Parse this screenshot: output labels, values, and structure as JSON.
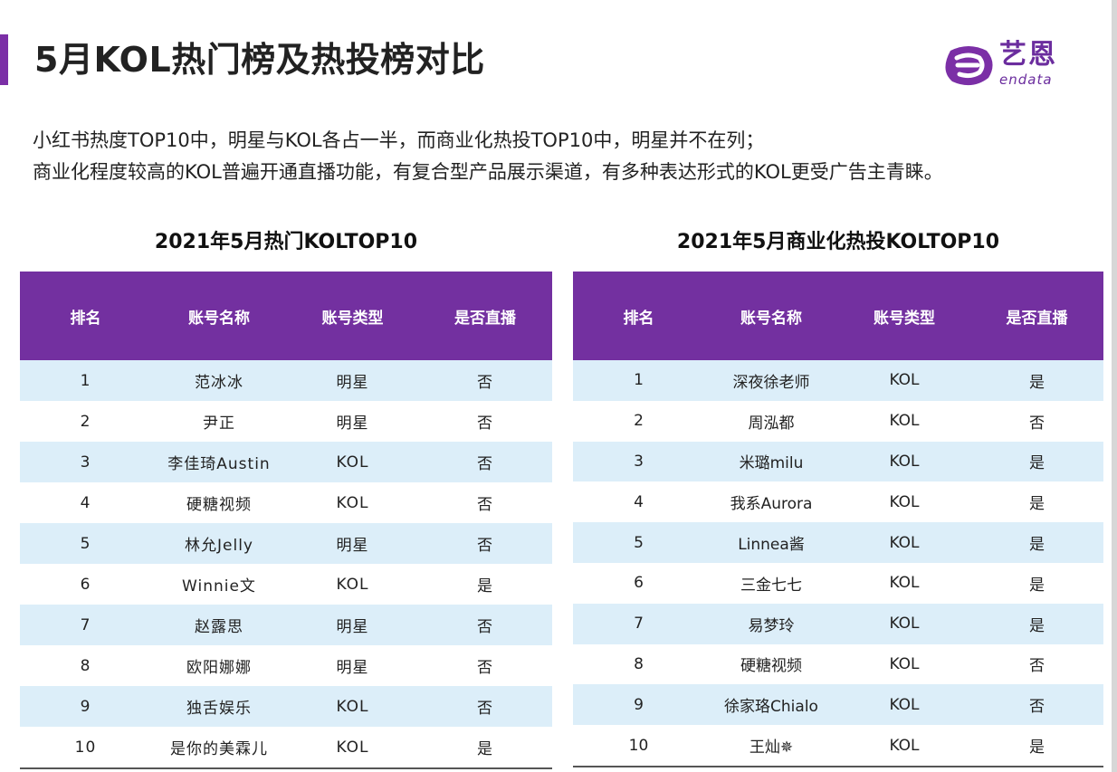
{
  "header": {
    "title": "5月KOL热门榜及热投榜对比",
    "logo_cn": "艺恩",
    "logo_en": "endata"
  },
  "description": [
    "小红书热度TOP10中，明星与KOL各占一半，而商业化热投TOP10中，明星并不在列；",
    "商业化程度较高的KOL普遍开通直播功能，有复合型产品展示渠道，有多种表达形式的KOL更受广告主青睐。"
  ],
  "tables": [
    {
      "title": "2021年5月热门KOLTOP10",
      "columns": [
        "排名",
        "账号名称",
        "账号类型",
        "是否直播"
      ],
      "rows": [
        [
          "1",
          "范冰冰",
          "明星",
          "否"
        ],
        [
          "2",
          "尹正",
          "明星",
          "否"
        ],
        [
          "3",
          "李佳琦Austin",
          "KOL",
          "否"
        ],
        [
          "4",
          "硬糖视频",
          "KOL",
          "否"
        ],
        [
          "5",
          "林允Jelly",
          "明星",
          "否"
        ],
        [
          "6",
          "Winnie文",
          "KOL",
          "是"
        ],
        [
          "7",
          "赵露思",
          "明星",
          "否"
        ],
        [
          "8",
          "欧阳娜娜",
          "明星",
          "否"
        ],
        [
          "9",
          "独舌娱乐",
          "KOL",
          "否"
        ],
        [
          "10",
          "是你的美霖儿",
          "KOL",
          "是"
        ]
      ]
    },
    {
      "title": "2021年5月商业化热投KOLTOP10",
      "columns": [
        "排名",
        "账号名称",
        "账号类型",
        "是否直播"
      ],
      "rows": [
        [
          "1",
          "深夜徐老师",
          "KOL",
          "是"
        ],
        [
          "2",
          "周泓都",
          "KOL",
          "否"
        ],
        [
          "3",
          "米璐milu",
          "KOL",
          "是"
        ],
        [
          "4",
          "我系Aurora",
          "KOL",
          "是"
        ],
        [
          "5",
          "Linnea酱",
          "KOL",
          "是"
        ],
        [
          "6",
          "三金七七",
          "KOL",
          "是"
        ],
        [
          "7",
          "易梦玲",
          "KOL",
          "是"
        ],
        [
          "8",
          "硬糖视频",
          "KOL",
          "否"
        ],
        [
          "9",
          "徐家珞Chialo",
          "KOL",
          "否"
        ],
        [
          "10",
          "王灿✵",
          "KOL",
          "是"
        ]
      ]
    }
  ],
  "colors": {
    "accent": "#7b2fa6",
    "header_bg": "#7330a0",
    "row_alt": "#dceef9",
    "logo": "#6b2d9e"
  }
}
